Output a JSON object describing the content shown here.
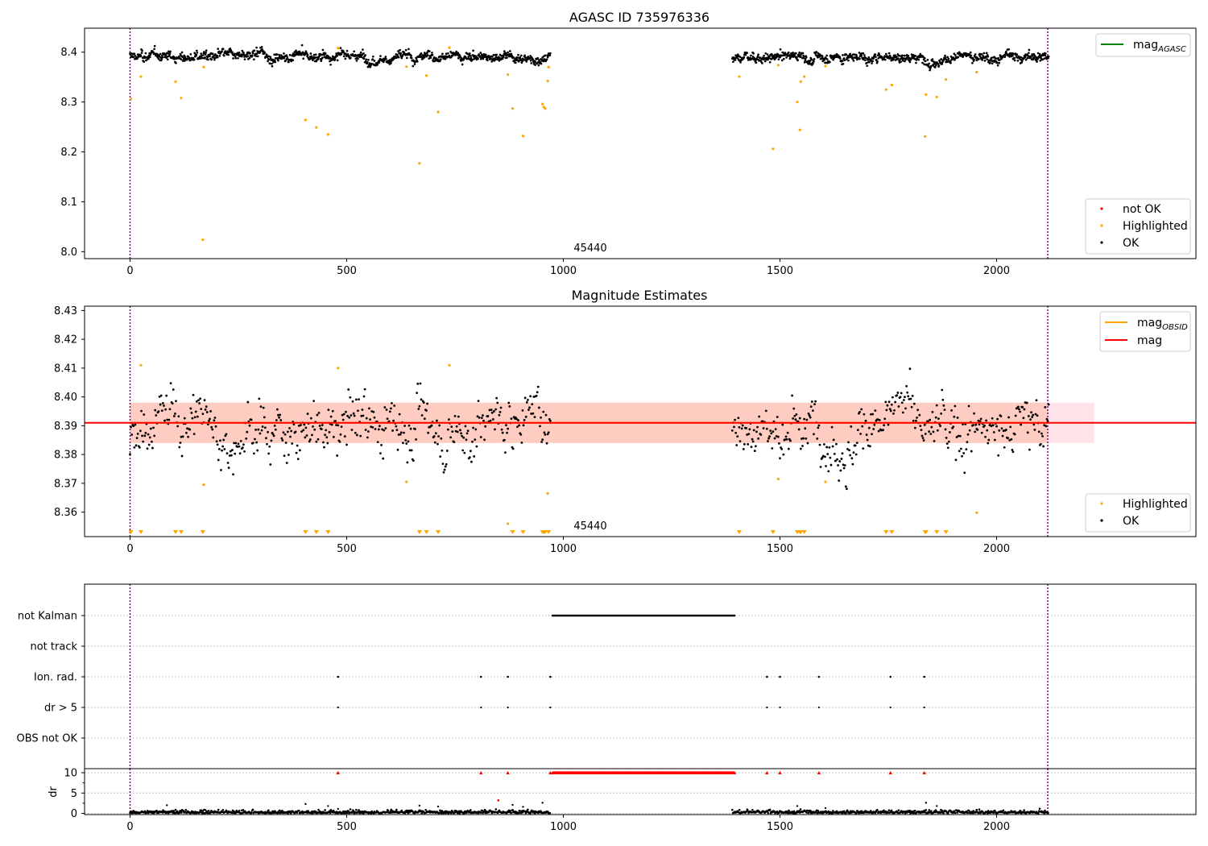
{
  "colors": {
    "ok": "#000000",
    "highlighted": "#ffa500",
    "not_ok": "#ff0000",
    "agasc_line": "#008000",
    "obsid_line": "#ffa500",
    "mag_line": "#ff0000",
    "band_outer": "#ffc0cb",
    "band_inner": "#ffa07a",
    "vline": "#800080",
    "grid": "#b0b0b0"
  },
  "chart_data": [
    {
      "id": "agasc",
      "type": "scatter",
      "title": "AGASC ID 735976336",
      "xlim": [
        -105,
        2460
      ],
      "ylim": [
        7.986,
        8.448
      ],
      "x_ticks": [
        0,
        500,
        1000,
        1500,
        2000
      ],
      "y_ticks": [
        8.0,
        8.1,
        8.2,
        8.3,
        8.4
      ],
      "y_decimals": 1,
      "grid": false,
      "vlines": [
        0,
        2118
      ],
      "annotation": {
        "text": "45440",
        "x": 1000,
        "y": 8.0
      },
      "legend_lines": [
        {
          "label": "mag",
          "subscript": "AGASC",
          "color": "#008000"
        }
      ],
      "legend_points": [
        {
          "label": "not OK",
          "color": "#ff0000"
        },
        {
          "label": "Highlighted",
          "color": "#ffa500"
        },
        {
          "label": "OK",
          "color": "#000000"
        }
      ],
      "segments": [
        [
          0,
          970
        ],
        [
          1390,
          2120
        ]
      ],
      "ok_center": 8.391,
      "ok_spread": 0.009,
      "highlighted": [
        [
          2,
          8.306
        ],
        [
          25,
          8.351
        ],
        [
          105,
          8.341
        ],
        [
          118,
          8.308
        ],
        [
          168,
          8.024
        ],
        [
          170,
          8.37
        ],
        [
          405,
          8.264
        ],
        [
          430,
          8.249
        ],
        [
          457,
          8.235
        ],
        [
          480,
          8.408
        ],
        [
          638,
          8.371
        ],
        [
          668,
          8.177
        ],
        [
          684,
          8.353
        ],
        [
          711,
          8.28
        ],
        [
          737,
          8.409
        ],
        [
          872,
          8.355
        ],
        [
          883,
          8.287
        ],
        [
          907,
          8.232
        ],
        [
          952,
          8.296
        ],
        [
          955,
          8.29
        ],
        [
          958,
          8.287
        ],
        [
          964,
          8.342
        ],
        [
          966,
          8.37
        ],
        [
          1406,
          8.351
        ],
        [
          1484,
          8.206
        ],
        [
          1496,
          8.374
        ],
        [
          1540,
          8.3
        ],
        [
          1546,
          8.244
        ],
        [
          1548,
          8.341
        ],
        [
          1556,
          8.351
        ],
        [
          1605,
          8.372
        ],
        [
          1745,
          8.325
        ],
        [
          1758,
          8.334
        ],
        [
          1835,
          8.231
        ],
        [
          1837,
          8.315
        ],
        [
          1862,
          8.31
        ],
        [
          1883,
          8.345
        ],
        [
          1954,
          8.36
        ]
      ]
    },
    {
      "id": "obsid",
      "type": "scatter",
      "title": "Magnitude Estimates",
      "xlim": [
        -105,
        2460
      ],
      "ylim": [
        8.3515,
        8.4315
      ],
      "x_ticks": [
        0,
        500,
        1000,
        1500,
        2000
      ],
      "y_ticks": [
        8.36,
        8.37,
        8.38,
        8.39,
        8.4,
        8.41,
        8.42,
        8.43
      ],
      "y_decimals": 2,
      "grid": false,
      "vlines": [
        0,
        2118
      ],
      "annotation": {
        "text": "45440",
        "x": 1000,
        "y": 8.352
      },
      "mag_value": 8.391,
      "mag_band": [
        8.384,
        8.398
      ],
      "band_outer_x": [
        0,
        2225
      ],
      "band_inner_x": [
        0,
        2118
      ],
      "legend_lines": [
        {
          "label": "mag",
          "subscript": "OBSID",
          "color": "#ffa500"
        },
        {
          "label": "mag",
          "subscript": "",
          "color": "#ff0000"
        }
      ],
      "legend_points": [
        {
          "label": "Highlighted",
          "color": "#ffa500"
        },
        {
          "label": "OK",
          "color": "#000000"
        }
      ],
      "segments": [
        [
          0,
          970
        ],
        [
          1390,
          2120
        ]
      ],
      "ok_center": 8.391,
      "ok_spread": 0.0065,
      "highlighted": [
        [
          25,
          8.411
        ],
        [
          170,
          8.3695
        ],
        [
          480,
          8.41
        ],
        [
          638,
          8.3705
        ],
        [
          737,
          8.411
        ],
        [
          872,
          8.356
        ],
        [
          964,
          8.3665
        ],
        [
          1496,
          8.3715
        ],
        [
          1605,
          8.3705
        ],
        [
          1954,
          8.3598
        ]
      ],
      "lower_markers": [
        2,
        25,
        105,
        118,
        168,
        405,
        430,
        457,
        668,
        684,
        711,
        883,
        907,
        952,
        955,
        958,
        966,
        1406,
        1484,
        1540,
        1546,
        1548,
        1556,
        1745,
        1758,
        1835,
        1837,
        1862,
        1883
      ]
    },
    {
      "id": "flags",
      "type": "scatter",
      "title": "",
      "xlim": [
        -105,
        2460
      ],
      "grid": true,
      "vlines": [
        0,
        2118
      ],
      "categories": [
        "not Kalman",
        "not track",
        "Ion. rad.",
        "dr > 5",
        "OBS not OK"
      ],
      "not_kalman_range": [
        975,
        1395
      ],
      "ion_rad_x": [
        480,
        810,
        872,
        970,
        1470,
        1500,
        1590,
        1755,
        1833
      ],
      "dr5_x": [
        480,
        810,
        872,
        970,
        1470,
        1500,
        1590,
        1755,
        1833
      ]
    },
    {
      "id": "dr",
      "type": "scatter",
      "title": "",
      "xlim": [
        -105,
        2460
      ],
      "ylim": [
        -0.3,
        11.0
      ],
      "x_ticks": [
        0,
        500,
        1000,
        1500,
        2000
      ],
      "y_ticks": [
        0,
        5,
        10
      ],
      "ylabel": "dr",
      "grid": true,
      "vlines": [
        0,
        2118
      ],
      "segments": [
        [
          0,
          970
        ],
        [
          1390,
          2120
        ]
      ],
      "capped_value": 10,
      "capped_x": [
        480,
        810,
        872,
        970,
        1470,
        1500,
        1590,
        1755,
        1833
      ],
      "capped_range": [
        975,
        1395
      ],
      "outliers": [
        [
          85,
          2.0
        ],
        [
          405,
          2.3
        ],
        [
          457,
          1.8
        ],
        [
          480,
          1.1
        ],
        [
          668,
          1.9
        ],
        [
          711,
          1.7
        ],
        [
          850,
          3.2
        ],
        [
          883,
          2.1
        ],
        [
          907,
          1.6
        ],
        [
          952,
          2.6
        ],
        [
          1540,
          1.8
        ],
        [
          1605,
          1.3
        ],
        [
          1837,
          2.6
        ],
        [
          1862,
          1.8
        ]
      ]
    }
  ]
}
